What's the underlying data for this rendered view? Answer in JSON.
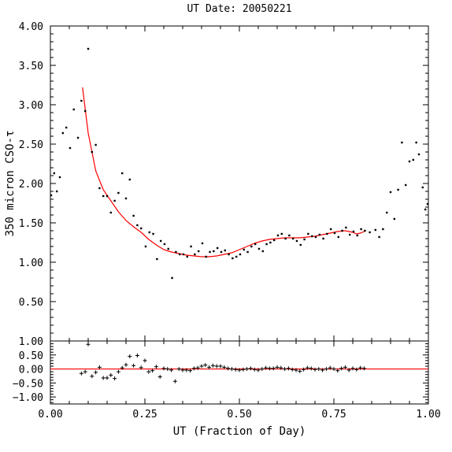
{
  "chart_data": {
    "type": "scatter",
    "title": "UT Date: 20050221",
    "xlabel": "UT (Fraction of Day)",
    "ylabel": "350 micron CSO-τ",
    "xlim": [
      0.0,
      1.0
    ],
    "x_ticks": [
      "0.00",
      "0.25",
      "0.50",
      "0.75",
      "1.00"
    ],
    "y_ticks": [
      "0.50",
      "1.00",
      "1.50",
      "2.00",
      "2.50",
      "3.00",
      "3.50",
      "4.00"
    ],
    "residual_ticks": [
      "1.00",
      "0.50",
      "0.00",
      "−0.50",
      "−1.00"
    ],
    "grid": false,
    "colors": {
      "points": "#000000",
      "fit": "#ff0000",
      "axes": "#000000"
    },
    "panels": [
      {
        "name": "tau",
        "ylim": [
          0.0,
          4.0
        ],
        "x_tick_values": [
          0.0,
          0.25,
          0.5,
          0.75,
          1.0
        ],
        "y_tick_values": [
          0.5,
          1.0,
          1.5,
          2.0,
          2.5,
          3.0,
          3.5,
          4.0
        ],
        "series": [
          {
            "kind": "points",
            "marker": "dot",
            "points": [
              [
                0.002,
                1.85
              ],
              [
                0.01,
                2.13
              ],
              [
                0.017,
                1.9
              ],
              [
                0.025,
                2.08
              ],
              [
                0.033,
                2.64
              ],
              [
                0.042,
                2.71
              ],
              [
                0.052,
                2.45
              ],
              [
                0.062,
                2.94
              ],
              [
                0.073,
                2.58
              ],
              [
                0.082,
                3.05
              ],
              [
                0.092,
                2.92
              ],
              [
                0.1,
                3.71
              ],
              [
                0.11,
                2.4
              ],
              [
                0.12,
                2.49
              ],
              [
                0.13,
                1.94
              ],
              [
                0.14,
                1.84
              ],
              [
                0.15,
                1.84
              ],
              [
                0.16,
                1.63
              ],
              [
                0.17,
                1.78
              ],
              [
                0.18,
                1.88
              ],
              [
                0.19,
                2.13
              ],
              [
                0.2,
                1.81
              ],
              [
                0.21,
                2.05
              ],
              [
                0.22,
                1.59
              ],
              [
                0.23,
                1.47
              ],
              [
                0.24,
                1.43
              ],
              [
                0.252,
                1.2
              ],
              [
                0.262,
                1.38
              ],
              [
                0.272,
                1.36
              ],
              [
                0.282,
                1.04
              ],
              [
                0.292,
                1.27
              ],
              [
                0.302,
                1.23
              ],
              [
                0.312,
                1.17
              ],
              [
                0.322,
                0.8
              ],
              [
                0.332,
                1.13
              ],
              [
                0.342,
                1.1
              ],
              [
                0.352,
                1.1
              ],
              [
                0.362,
                1.07
              ],
              [
                0.372,
                1.2
              ],
              [
                0.382,
                1.1
              ],
              [
                0.392,
                1.14
              ],
              [
                0.402,
                1.24
              ],
              [
                0.412,
                1.07
              ],
              [
                0.422,
                1.13
              ],
              [
                0.432,
                1.14
              ],
              [
                0.442,
                1.18
              ],
              [
                0.452,
                1.13
              ],
              [
                0.462,
                1.15
              ],
              [
                0.472,
                1.1
              ],
              [
                0.482,
                1.05
              ],
              [
                0.492,
                1.07
              ],
              [
                0.502,
                1.1
              ],
              [
                0.512,
                1.16
              ],
              [
                0.522,
                1.13
              ],
              [
                0.532,
                1.2
              ],
              [
                0.542,
                1.23
              ],
              [
                0.552,
                1.17
              ],
              [
                0.562,
                1.14
              ],
              [
                0.572,
                1.23
              ],
              [
                0.582,
                1.25
              ],
              [
                0.592,
                1.28
              ],
              [
                0.602,
                1.34
              ],
              [
                0.612,
                1.36
              ],
              [
                0.622,
                1.3
              ],
              [
                0.632,
                1.34
              ],
              [
                0.642,
                1.3
              ],
              [
                0.652,
                1.27
              ],
              [
                0.662,
                1.22
              ],
              [
                0.672,
                1.29
              ],
              [
                0.682,
                1.36
              ],
              [
                0.692,
                1.33
              ],
              [
                0.702,
                1.32
              ],
              [
                0.712,
                1.35
              ],
              [
                0.722,
                1.3
              ],
              [
                0.732,
                1.36
              ],
              [
                0.742,
                1.42
              ],
              [
                0.752,
                1.37
              ],
              [
                0.762,
                1.32
              ],
              [
                0.772,
                1.4
              ],
              [
                0.782,
                1.44
              ],
              [
                0.792,
                1.35
              ],
              [
                0.802,
                1.39
              ],
              [
                0.812,
                1.34
              ],
              [
                0.822,
                1.42
              ],
              [
                0.832,
                1.4
              ],
              [
                0.845,
                1.38
              ],
              [
                0.86,
                1.41
              ],
              [
                0.87,
                1.32
              ],
              [
                0.88,
                1.42
              ],
              [
                0.89,
                1.63
              ],
              [
                0.9,
                1.89
              ],
              [
                0.91,
                1.55
              ],
              [
                0.92,
                1.92
              ],
              [
                0.93,
                2.52
              ],
              [
                0.94,
                1.98
              ],
              [
                0.95,
                2.28
              ],
              [
                0.96,
                2.3
              ],
              [
                0.968,
                2.52
              ],
              [
                0.975,
                2.37
              ],
              [
                0.985,
                1.95
              ],
              [
                0.992,
                1.67
              ],
              [
                0.998,
                1.74
              ]
            ]
          },
          {
            "kind": "line",
            "points": [
              [
                0.085,
                3.22
              ],
              [
                0.1,
                2.64
              ],
              [
                0.12,
                2.16
              ],
              [
                0.14,
                1.92
              ],
              [
                0.16,
                1.78
              ],
              [
                0.18,
                1.64
              ],
              [
                0.2,
                1.53
              ],
              [
                0.22,
                1.45
              ],
              [
                0.24,
                1.38
              ],
              [
                0.26,
                1.29
              ],
              [
                0.28,
                1.22
              ],
              [
                0.3,
                1.16
              ],
              [
                0.32,
                1.13
              ],
              [
                0.34,
                1.11
              ],
              [
                0.36,
                1.09
              ],
              [
                0.38,
                1.08
              ],
              [
                0.4,
                1.07
              ],
              [
                0.42,
                1.07
              ],
              [
                0.44,
                1.08
              ],
              [
                0.46,
                1.1
              ],
              [
                0.48,
                1.12
              ],
              [
                0.5,
                1.16
              ],
              [
                0.52,
                1.2
              ],
              [
                0.54,
                1.24
              ],
              [
                0.56,
                1.27
              ],
              [
                0.58,
                1.29
              ],
              [
                0.6,
                1.3
              ],
              [
                0.62,
                1.31
              ],
              [
                0.64,
                1.31
              ],
              [
                0.66,
                1.31
              ],
              [
                0.68,
                1.32
              ],
              [
                0.7,
                1.33
              ],
              [
                0.72,
                1.35
              ],
              [
                0.74,
                1.37
              ],
              [
                0.76,
                1.39
              ],
              [
                0.78,
                1.4
              ],
              [
                0.8,
                1.38
              ],
              [
                0.81,
                1.36
              ],
              [
                0.82,
                1.37
              ],
              [
                0.835,
                1.4
              ]
            ]
          }
        ]
      },
      {
        "name": "residuals",
        "ylim": [
          -1.25,
          1.0
        ],
        "x_tick_values": [
          0.0,
          0.25,
          0.5,
          0.75,
          1.0
        ],
        "y_tick_values": [
          1.0,
          0.5,
          0.0,
          -0.5,
          -1.0
        ],
        "zero_line": 0.0,
        "series": [
          {
            "kind": "points",
            "marker": "plus",
            "points": [
              [
                0.082,
                -0.16
              ],
              [
                0.092,
                -0.1
              ],
              [
                0.1,
                0.88
              ],
              [
                0.11,
                -0.26
              ],
              [
                0.12,
                -0.12
              ],
              [
                0.13,
                0.06
              ],
              [
                0.14,
                -0.32
              ],
              [
                0.15,
                -0.32
              ],
              [
                0.16,
                -0.22
              ],
              [
                0.17,
                -0.34
              ],
              [
                0.18,
                -0.1
              ],
              [
                0.19,
                0.04
              ],
              [
                0.2,
                0.15
              ],
              [
                0.21,
                0.45
              ],
              [
                0.22,
                0.12
              ],
              [
                0.23,
                0.48
              ],
              [
                0.24,
                0.05
              ],
              [
                0.25,
                0.3
              ],
              [
                0.26,
                -0.1
              ],
              [
                0.27,
                -0.06
              ],
              [
                0.28,
                0.08
              ],
              [
                0.29,
                -0.28
              ],
              [
                0.3,
                0.02
              ],
              [
                0.31,
                0.0
              ],
              [
                0.32,
                -0.04
              ],
              [
                0.33,
                -0.44
              ],
              [
                0.34,
                0.0
              ],
              [
                0.35,
                -0.04
              ],
              [
                0.36,
                -0.04
              ],
              [
                0.37,
                -0.06
              ],
              [
                0.38,
                0.02
              ],
              [
                0.39,
                0.04
              ],
              [
                0.4,
                0.1
              ],
              [
                0.41,
                0.14
              ],
              [
                0.42,
                0.06
              ],
              [
                0.43,
                0.12
              ],
              [
                0.44,
                0.1
              ],
              [
                0.45,
                0.1
              ],
              [
                0.46,
                0.06
              ],
              [
                0.47,
                0.02
              ],
              [
                0.48,
                0.0
              ],
              [
                0.49,
                -0.02
              ],
              [
                0.5,
                -0.04
              ],
              [
                0.51,
                -0.02
              ],
              [
                0.52,
                0.0
              ],
              [
                0.53,
                0.02
              ],
              [
                0.54,
                -0.02
              ],
              [
                0.55,
                -0.04
              ],
              [
                0.56,
                0.0
              ],
              [
                0.57,
                0.04
              ],
              [
                0.58,
                0.02
              ],
              [
                0.59,
                0.02
              ],
              [
                0.6,
                0.06
              ],
              [
                0.61,
                0.04
              ],
              [
                0.62,
                0.0
              ],
              [
                0.63,
                0.02
              ],
              [
                0.64,
                -0.02
              ],
              [
                0.65,
                -0.04
              ],
              [
                0.66,
                -0.08
              ],
              [
                0.67,
                -0.02
              ],
              [
                0.68,
                0.04
              ],
              [
                0.69,
                0.02
              ],
              [
                0.7,
                -0.02
              ],
              [
                0.71,
                0.0
              ],
              [
                0.72,
                -0.04
              ],
              [
                0.73,
                0.0
              ],
              [
                0.74,
                0.04
              ],
              [
                0.75,
                0.0
              ],
              [
                0.76,
                -0.06
              ],
              [
                0.77,
                0.02
              ],
              [
                0.78,
                0.06
              ],
              [
                0.79,
                -0.04
              ],
              [
                0.8,
                0.02
              ],
              [
                0.81,
                -0.02
              ],
              [
                0.82,
                0.04
              ],
              [
                0.83,
                0.02
              ]
            ]
          }
        ]
      }
    ]
  }
}
